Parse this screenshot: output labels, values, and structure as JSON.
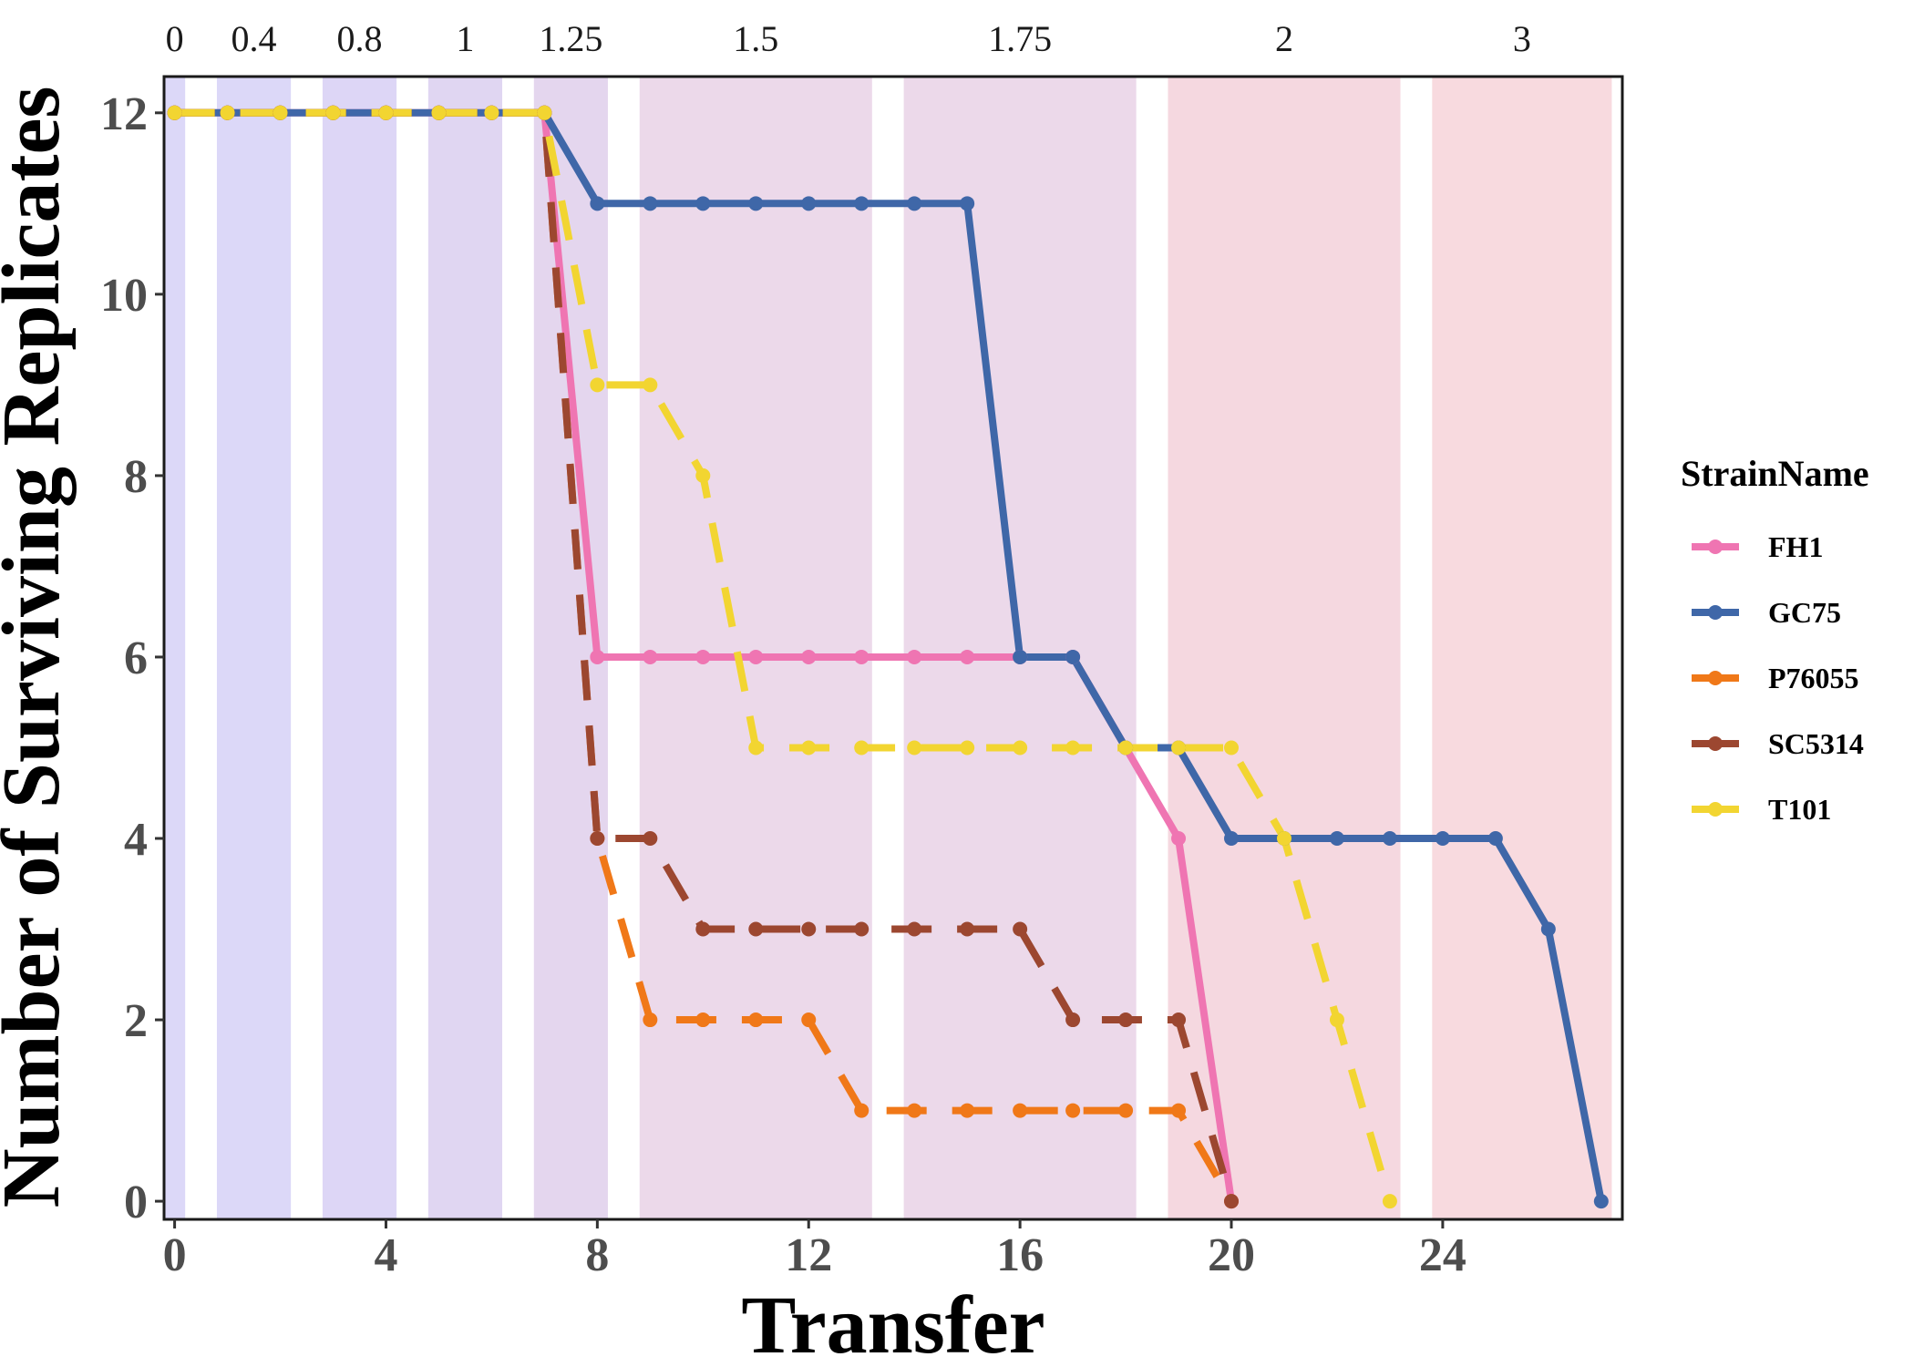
{
  "chart_data": {
    "type": "line",
    "xlabel": "Transfer",
    "ylabel": "Number of Surviving Replicates",
    "xlim": [
      -0.2,
      27.4
    ],
    "ylim": [
      -0.2,
      12.4
    ],
    "x_ticks": [
      0,
      4,
      8,
      12,
      16,
      20,
      24
    ],
    "y_ticks": [
      0,
      2,
      4,
      6,
      8,
      10,
      12
    ],
    "grid": false,
    "legend": {
      "title": "StrainName",
      "position": "right"
    },
    "bands": [
      {
        "label": "0",
        "start": -0.2,
        "end": 0.2,
        "color": "#dcd8f8"
      },
      {
        "label": "0.4",
        "start": 0.8,
        "end": 2.2,
        "color": "#dcd8f8"
      },
      {
        "label": "0.8",
        "start": 2.8,
        "end": 4.2,
        "color": "#ddd6f6"
      },
      {
        "label": "1",
        "start": 4.8,
        "end": 6.2,
        "color": "#e0d6f2"
      },
      {
        "label": "1.25",
        "start": 6.8,
        "end": 8.2,
        "color": "#e4d6ee"
      },
      {
        "label": "1.5",
        "start": 8.8,
        "end": 13.2,
        "color": "#ecd9ea"
      },
      {
        "label": "1.75",
        "start": 13.8,
        "end": 18.2,
        "color": "#ecd9ea"
      },
      {
        "label": "2",
        "start": 18.8,
        "end": 23.2,
        "color": "#f5d8e0"
      },
      {
        "label": "3",
        "start": 23.8,
        "end": 27.2,
        "color": "#f8dadf"
      }
    ],
    "series": [
      {
        "name": "FH1",
        "color": "#ef75b2",
        "dash": "solid",
        "x": [
          0,
          1,
          2,
          3,
          4,
          5,
          6,
          7,
          8,
          9,
          10,
          11,
          12,
          13,
          14,
          15,
          16,
          17,
          18,
          19,
          20
        ],
        "y": [
          12,
          12,
          12,
          12,
          12,
          12,
          12,
          12,
          6,
          6,
          6,
          6,
          6,
          6,
          6,
          6,
          6,
          6,
          5,
          4,
          0
        ]
      },
      {
        "name": "GC75",
        "color": "#3f67a8",
        "dash": "solid",
        "x": [
          0,
          1,
          2,
          3,
          4,
          5,
          6,
          7,
          8,
          9,
          10,
          11,
          12,
          13,
          14,
          15,
          16,
          17,
          18,
          19,
          20,
          21,
          22,
          23,
          24,
          25,
          26,
          27
        ],
        "y": [
          12,
          12,
          12,
          12,
          12,
          12,
          12,
          12,
          11,
          11,
          11,
          11,
          11,
          11,
          11,
          11,
          6,
          6,
          5,
          5,
          4,
          4,
          4,
          4,
          4,
          4,
          3,
          0
        ]
      },
      {
        "name": "P76055",
        "color": "#f07818",
        "dash": "dashed",
        "x": [
          0,
          1,
          2,
          3,
          4,
          5,
          6,
          7,
          8,
          9,
          10,
          11,
          12,
          13,
          14,
          15,
          16,
          17,
          18,
          19,
          20
        ],
        "y": [
          12,
          12,
          12,
          12,
          12,
          12,
          12,
          12,
          4,
          2,
          2,
          2,
          2,
          1,
          1,
          1,
          1,
          1,
          1,
          1,
          0
        ]
      },
      {
        "name": "SC5314",
        "color": "#9c4730",
        "dash": "dashed",
        "x": [
          0,
          1,
          2,
          3,
          4,
          5,
          6,
          7,
          8,
          9,
          10,
          11,
          12,
          13,
          14,
          15,
          16,
          17,
          18,
          19,
          20
        ],
        "y": [
          12,
          12,
          12,
          12,
          12,
          12,
          12,
          12,
          4,
          4,
          3,
          3,
          3,
          3,
          3,
          3,
          3,
          2,
          2,
          2,
          0
        ]
      },
      {
        "name": "T101",
        "color": "#f2d531",
        "dash": "dashed",
        "x": [
          0,
          1,
          2,
          3,
          4,
          5,
          6,
          7,
          8,
          9,
          10,
          11,
          12,
          13,
          14,
          15,
          16,
          17,
          18,
          19,
          20,
          21,
          22,
          23
        ],
        "y": [
          12,
          12,
          12,
          12,
          12,
          12,
          12,
          12,
          9,
          9,
          8,
          5,
          5,
          5,
          5,
          5,
          5,
          5,
          5,
          5,
          5,
          4,
          2,
          0
        ]
      }
    ]
  }
}
